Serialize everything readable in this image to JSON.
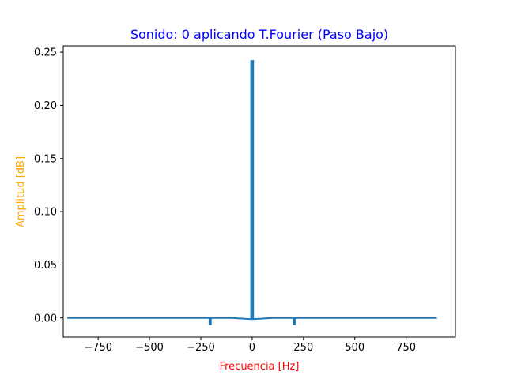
{
  "chart_data": {
    "type": "line",
    "title": "Sonido: 0 aplicando T.Fourier (Paso Bajo)",
    "xlabel": "Frecuencia [Hz]",
    "ylabel": "Amplitud [dB]",
    "xlim": [
      -920,
      990
    ],
    "ylim": [
      -0.018,
      0.256
    ],
    "x_ticks": [
      -750,
      -500,
      -250,
      0,
      250,
      500,
      750
    ],
    "x_tick_labels": [
      "−750",
      "−500",
      "−250",
      "0",
      "250",
      "500",
      "750"
    ],
    "y_ticks": [
      0.0,
      0.05,
      0.1,
      0.15,
      0.2,
      0.25
    ],
    "y_tick_labels": [
      "0.00",
      "0.05",
      "0.10",
      "0.15",
      "0.20",
      "0.25"
    ],
    "grid": false,
    "colors": {
      "title": "#0000ff",
      "xlabel": "#ff0000",
      "ylabel": "#ffa500",
      "line": "#1f77b4"
    },
    "series": [
      {
        "x": [
          -900,
          -100,
          -10,
          -5,
          -5,
          -4,
          -4,
          -3,
          3,
          4,
          4,
          5,
          5,
          10,
          100,
          900
        ],
        "y": [
          0.0,
          0.0,
          -0.001,
          -0.001,
          0.242,
          0.242,
          -0.001,
          -0.001,
          -0.001,
          -0.001,
          0.242,
          0.242,
          -0.001,
          -0.001,
          0.0,
          0.0
        ]
      },
      {
        "x": [
          -208,
          -208,
          -206,
          -206,
          -203,
          -203,
          -201,
          -201
        ],
        "y": [
          0.0,
          -0.006,
          -0.006,
          0.0,
          0.0,
          -0.006,
          -0.006,
          0.0
        ]
      },
      {
        "x": [
          201,
          201,
          203,
          203,
          206,
          206,
          208,
          208
        ],
        "y": [
          0.0,
          -0.006,
          -0.006,
          0.0,
          0.0,
          -0.006,
          -0.006,
          0.0
        ]
      }
    ]
  }
}
